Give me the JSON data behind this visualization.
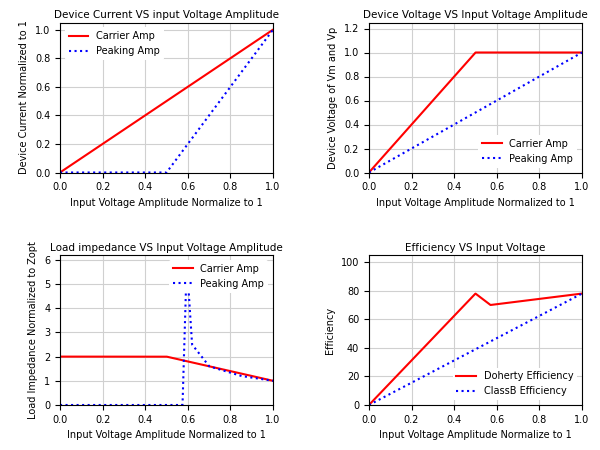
{
  "plot1": {
    "title": "Device Current VS input Voltage Amplitude",
    "xlabel": "Input Voltage Amplitude Normalize to 1",
    "ylabel": "Device Current Normalized to 1",
    "ylim": [
      0,
      1.05
    ],
    "xlim": [
      0,
      1.0
    ],
    "legend1": "Carrier Amp",
    "legend2": "Peaking Amp"
  },
  "plot2": {
    "title": "Device Voltage VS Input Voltage Amplitude",
    "xlabel": "Input Voltage Amplitude Normalized to 1",
    "ylabel": "Device Voltage of Vm and Vp",
    "ylim": [
      0,
      1.25
    ],
    "xlim": [
      0,
      1.0
    ],
    "legend1": "Carrier Amp",
    "legend2": "Peaking Amp"
  },
  "plot3": {
    "title": "Load impedance VS Input Voltage Amplitude",
    "xlabel": "Input Voltage Amplitude Normalized to 1",
    "ylabel": "Load Impedance Normalized to Zopt",
    "ylim": [
      0,
      6.2
    ],
    "xlim": [
      0,
      1.0
    ],
    "legend1": "Carrier Amp",
    "legend2": "Peaking Amp"
  },
  "plot4": {
    "title": "Efficiency VS Input Voltage",
    "xlabel": "Input Voltage Amplitude Normalize to 1",
    "ylabel": "Efficiency",
    "ylim": [
      0,
      105
    ],
    "xlim": [
      0,
      1.0
    ],
    "legend1": "Doherty Efficiency",
    "legend2": "ClassB Efficiency"
  },
  "colors": {
    "carrier": "#ff0000",
    "peaking": "#0000ff"
  },
  "bg_color": "#ffffff",
  "grid_color": "#d0d0d0"
}
